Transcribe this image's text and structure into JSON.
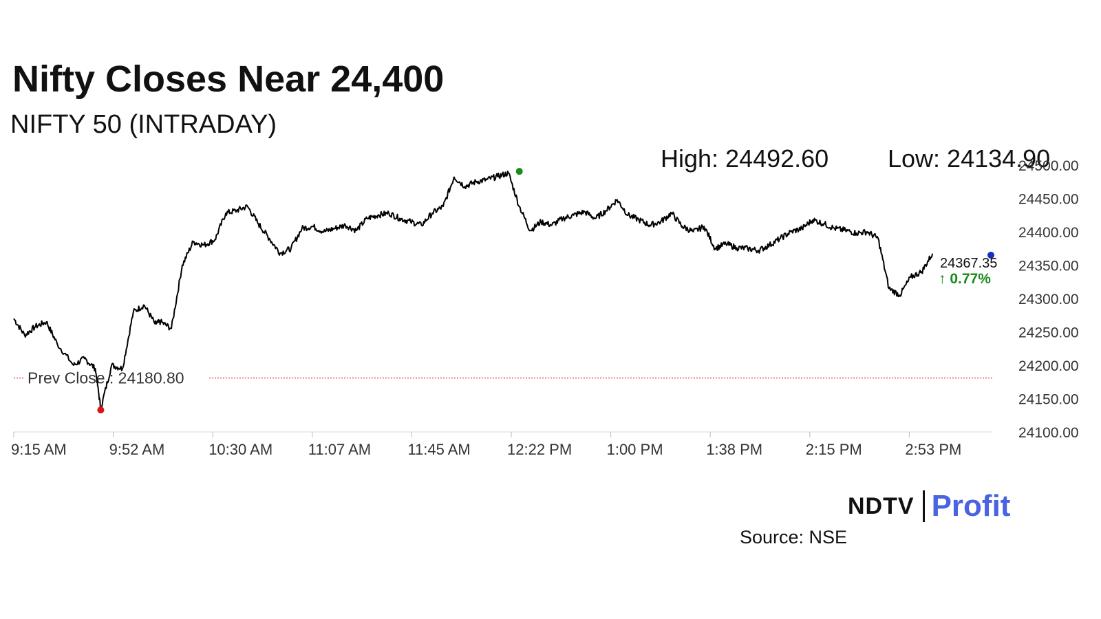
{
  "title": "Nifty Closes Near 24,400",
  "subtitle": "NIFTY 50 (INTRADAY)",
  "high_text": "High: 24492.60",
  "low_text": "Low: 24134.90",
  "source_text": "Source: NSE",
  "brand": {
    "ndtv": "NDTV",
    "profit": "Profit"
  },
  "colors": {
    "line": "#000000",
    "prev_close": "#e03030",
    "high_marker": "#1a8a1a",
    "low_marker": "#e01010",
    "last_marker": "#1a2fbf",
    "change_up": "#1a8a1a",
    "brand_profit": "#4a63e0"
  },
  "chart_data": {
    "type": "line",
    "title": "Nifty Closes Near 24,400",
    "subtitle": "NIFTY 50 (INTRADAY)",
    "x_ticks": [
      "9:15 AM",
      "9:52 AM",
      "10:30 AM",
      "11:07 AM",
      "11:45 AM",
      "12:22 PM",
      "1:00 PM",
      "1:38 PM",
      "2:15 PM",
      "2:53 PM"
    ],
    "y_ticks": [
      "24500.00",
      "24450.00",
      "24400.00",
      "24350.00",
      "24300.00",
      "24250.00",
      "24200.00",
      "24150.00",
      "24100.00"
    ],
    "ylim": [
      24100,
      24500
    ],
    "x_range_minutes": [
      0,
      360
    ],
    "series": [
      {
        "x": [
          0,
          4,
          8,
          12,
          16,
          22,
          26,
          30,
          32,
          36,
          40,
          44,
          48,
          52,
          54,
          58,
          62,
          66,
          70,
          74,
          78,
          82,
          86,
          90,
          94,
          98,
          102,
          106,
          110,
          114,
          118,
          122,
          126,
          130,
          134,
          138,
          142,
          146,
          150,
          154,
          158,
          162,
          166,
          170,
          174,
          178,
          182,
          186,
          190,
          194,
          198,
          202,
          206,
          210,
          214,
          218,
          222,
          226,
          230,
          234,
          238,
          242,
          246,
          250,
          254,
          258,
          262,
          266,
          270,
          274,
          278,
          282,
          286,
          290,
          294,
          298,
          302,
          306,
          310,
          314,
          318,
          322,
          326,
          330,
          334,
          338
        ],
        "y": [
          24270,
          24245,
          24258,
          24265,
          24232,
          24200,
          24210,
          24195,
          24135,
          24200,
          24195,
          24280,
          24290,
          24262,
          24265,
          24255,
          24350,
          24385,
          24380,
          24388,
          24428,
          24432,
          24438,
          24412,
          24390,
          24368,
          24375,
          24405,
          24408,
          24400,
          24405,
          24410,
          24402,
          24420,
          24425,
          24428,
          24420,
          24415,
          24410,
          24428,
          24438,
          24482,
          24468,
          24475,
          24478,
          24483,
          24488,
          24438,
          24402,
          24415,
          24410,
          24420,
          24425,
          24430,
          24420,
          24432,
          24448,
          24425,
          24418,
          24410,
          24415,
          24428,
          24408,
          24400,
          24408,
          24375,
          24382,
          24376,
          24375,
          24372,
          24380,
          24390,
          24400,
          24405,
          24418,
          24412,
          24405,
          24402,
          24398,
          24400,
          24390,
          24315,
          24305,
          24332,
          24340,
          24367.35
        ]
      }
    ],
    "prev_close": 24180.8,
    "prev_close_label": "Prev Close : 24180.80",
    "high": 24492.6,
    "low": 24134.9,
    "last": 24367.35,
    "last_label": "24367.35",
    "change_label": "↑ 0.77%",
    "grid": false,
    "legend": "none"
  }
}
